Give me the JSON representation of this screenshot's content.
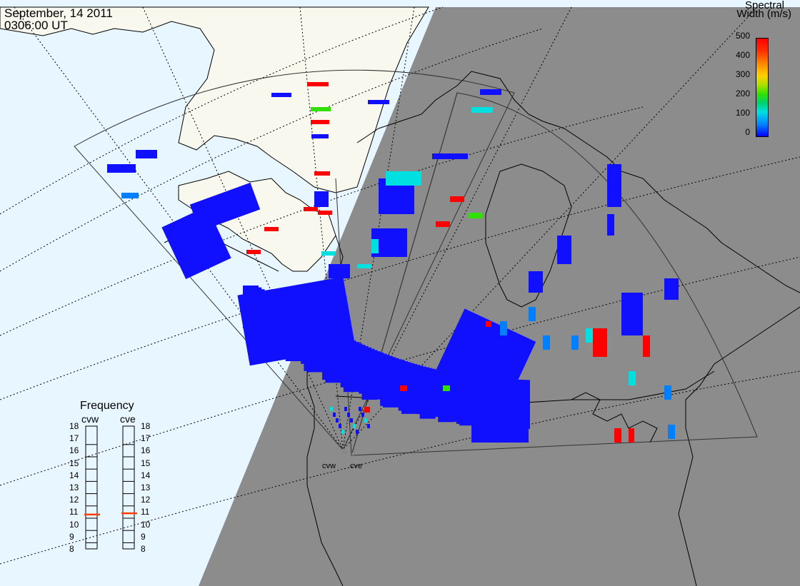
{
  "header": {
    "date": "September, 14 2011",
    "time": "0306:00 UT"
  },
  "colorbar": {
    "title_line1": "Spectral",
    "title_line2": "Width (m/s)",
    "ticks": [
      "500",
      "400",
      "300",
      "200",
      "100",
      "0"
    ],
    "colors": [
      "#0000ff",
      "#00e0e0",
      "#30e000",
      "#ffd000",
      "#ff0000"
    ]
  },
  "frequency_panel": {
    "title": "Frequency",
    "radars": [
      {
        "code": "cvw",
        "frequency_mhz": 10.8
      },
      {
        "code": "cve",
        "frequency_mhz": 10.9
      }
    ],
    "ticks": [
      "18",
      "17",
      "16",
      "15",
      "14",
      "13",
      "12",
      "11",
      "10",
      "9",
      "8"
    ],
    "marker_color": "#ff4000"
  },
  "sites": [
    {
      "code": "cvw",
      "color": "#888888"
    },
    {
      "code": "cve",
      "color": "#888888"
    }
  ],
  "map": {
    "ocean_color": "#e8f6ff",
    "land_color": "#f8f8ee",
    "night_shade": "#8c8c8c",
    "scatter_color": "#1010ff"
  }
}
